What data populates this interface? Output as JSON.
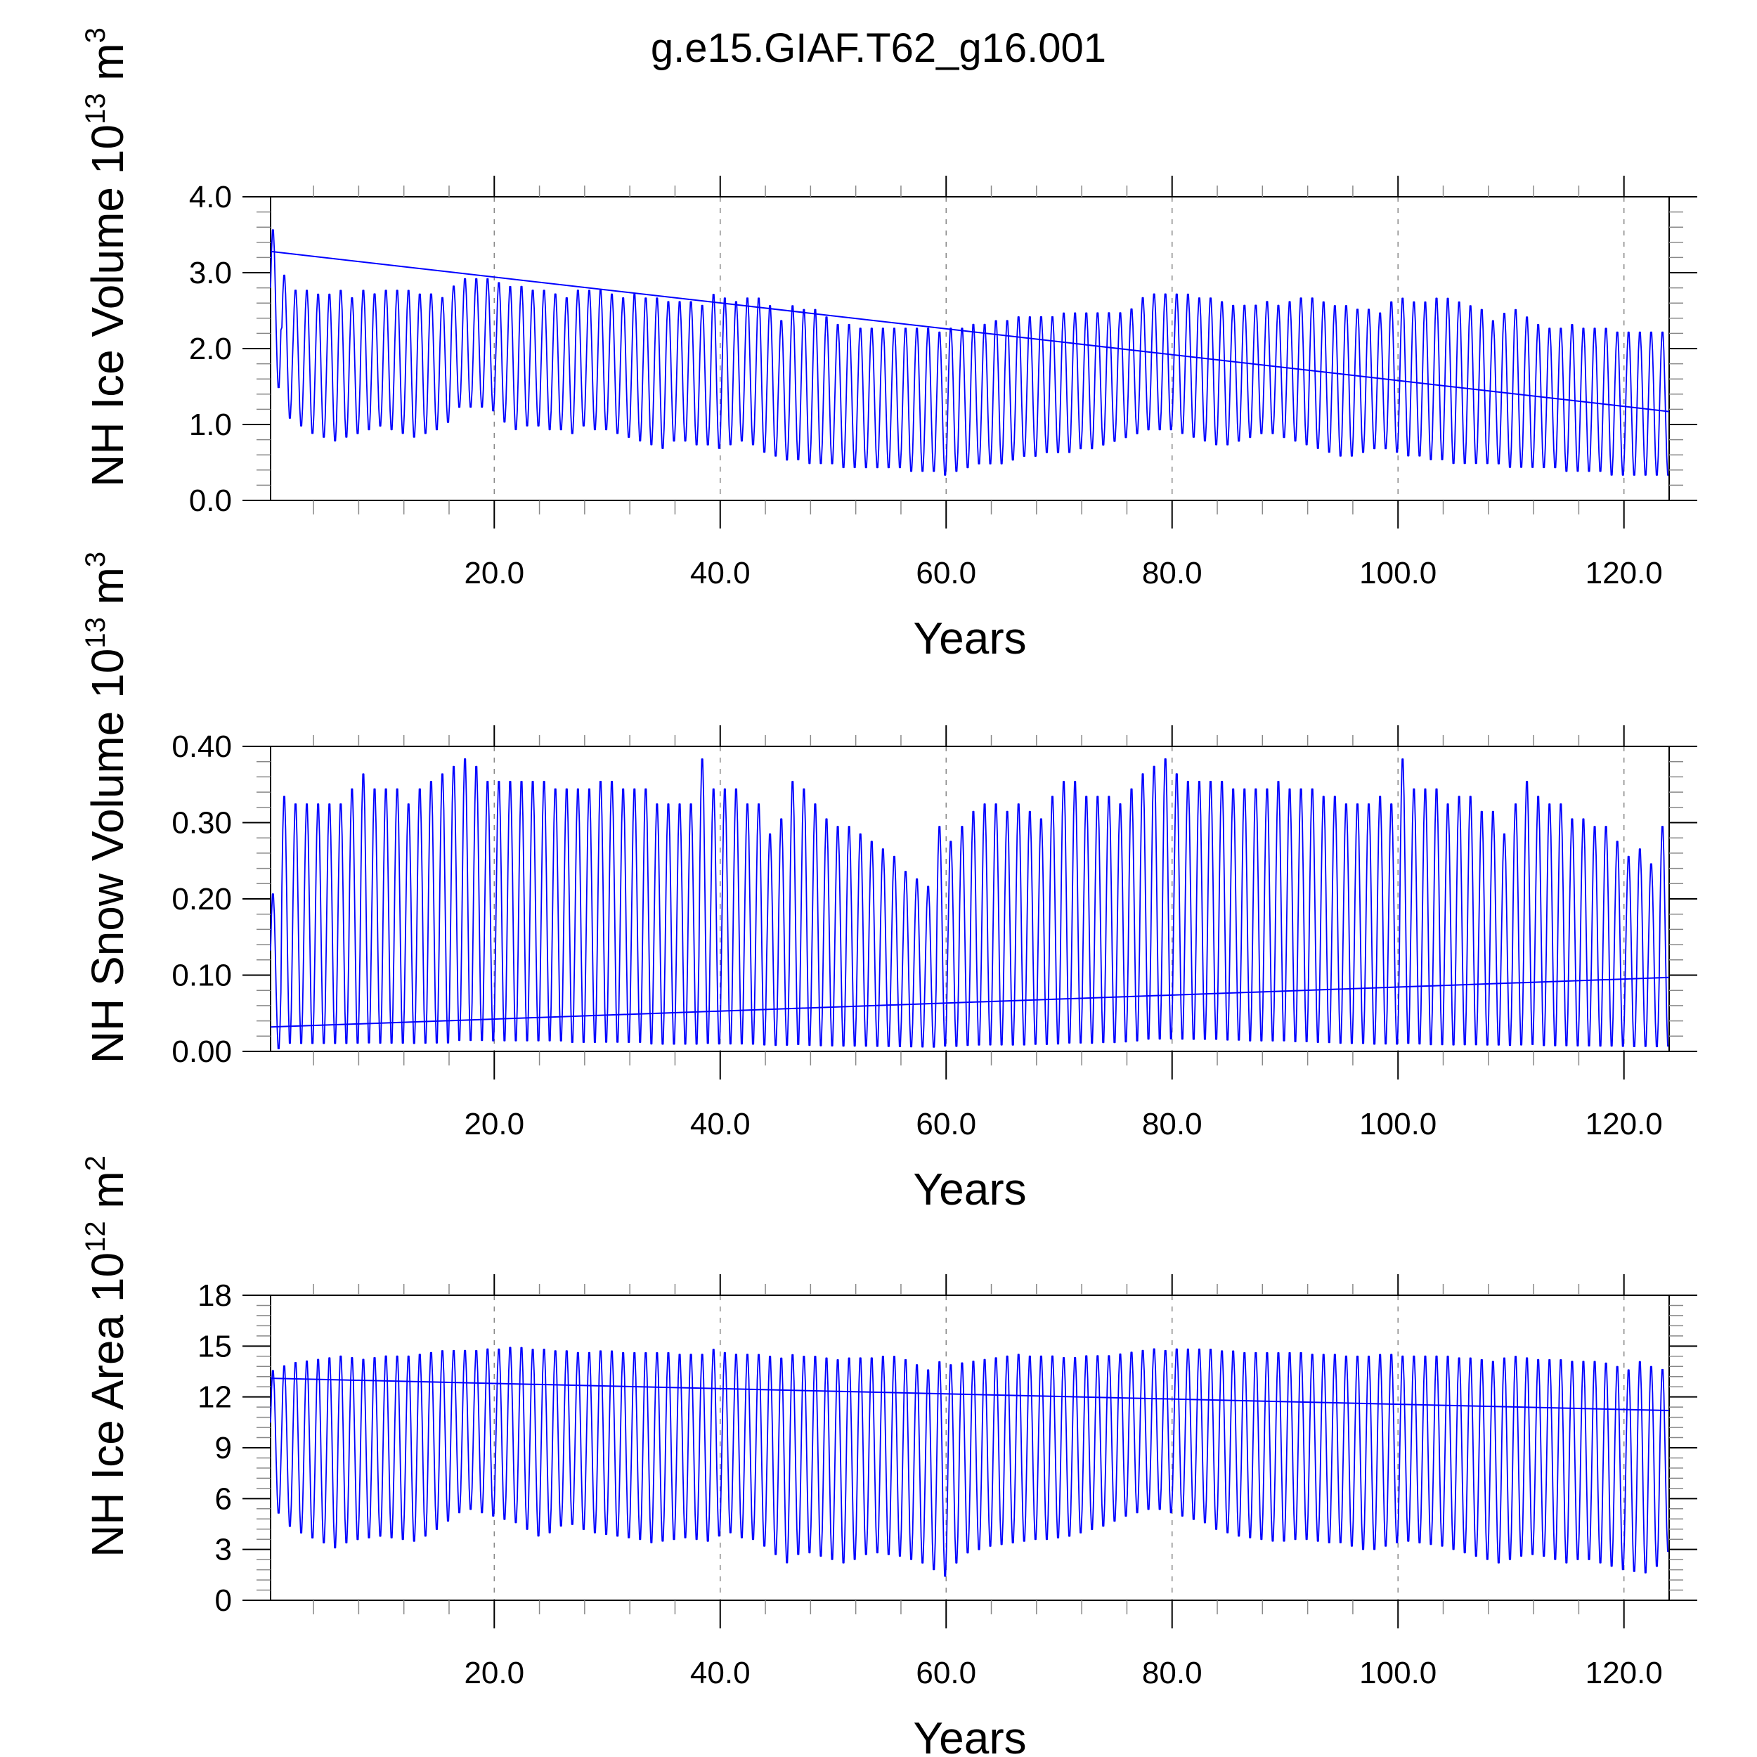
{
  "title": "g.e15.GIAF.T62_g16.001",
  "colors": {
    "series": "#0000ff",
    "axis": "#000000",
    "grid": "#888888"
  },
  "chart_data": [
    {
      "type": "line",
      "id": "ice-volume",
      "ylabel": {
        "prefix": "NH Ice Volume 10",
        "exp": "13",
        "unit": " m",
        "unit_exp": "3"
      },
      "xlabel": "Years",
      "xlim": [
        0.2,
        124.0
      ],
      "ylim": [
        0.0,
        4.0
      ],
      "yticks": [
        0.0,
        1.0,
        2.0,
        3.0,
        4.0
      ],
      "ytick_labels": [
        "0.0",
        "1.0",
        "2.0",
        "3.0",
        "4.0"
      ],
      "xticks": [
        20,
        40,
        60,
        80,
        100,
        120
      ],
      "xtick_labels": [
        "20.0",
        "40.0",
        "60.0",
        "80.0",
        "100.0",
        "120.0"
      ],
      "series": [
        {
          "name": "monthly",
          "start_year": 0.2,
          "points_per_year": 12,
          "annual_max": [
            3.6,
            3.0,
            2.8,
            2.8,
            2.75,
            2.75,
            2.8,
            2.7,
            2.8,
            2.75,
            2.8,
            2.8,
            2.8,
            2.75,
            2.75,
            2.7,
            2.85,
            2.95,
            2.95,
            2.95,
            2.9,
            2.85,
            2.85,
            2.8,
            2.8,
            2.75,
            2.7,
            2.8,
            2.8,
            2.8,
            2.75,
            2.7,
            2.75,
            2.7,
            2.7,
            2.65,
            2.65,
            2.65,
            2.6,
            2.75,
            2.7,
            2.65,
            2.7,
            2.7,
            2.6,
            2.4,
            2.6,
            2.55,
            2.55,
            2.45,
            2.35,
            2.35,
            2.3,
            2.3,
            2.3,
            2.3,
            2.3,
            2.3,
            2.3,
            2.25,
            2.3,
            2.3,
            2.35,
            2.35,
            2.4,
            2.4,
            2.45,
            2.45,
            2.45,
            2.45,
            2.5,
            2.5,
            2.5,
            2.5,
            2.5,
            2.5,
            2.55,
            2.7,
            2.75,
            2.75,
            2.75,
            2.75,
            2.7,
            2.7,
            2.65,
            2.6,
            2.6,
            2.6,
            2.65,
            2.6,
            2.65,
            2.7,
            2.7,
            2.65,
            2.6,
            2.6,
            2.55,
            2.55,
            2.5,
            2.65,
            2.7,
            2.65,
            2.65,
            2.7,
            2.7,
            2.65,
            2.6,
            2.55,
            2.4,
            2.5,
            2.55,
            2.45,
            2.35,
            2.3,
            2.3,
            2.35,
            2.3,
            2.3,
            2.3,
            2.25,
            2.25,
            2.25,
            2.25,
            2.25
          ],
          "annual_min": [
            1.45,
            1.05,
            0.95,
            0.85,
            0.8,
            0.75,
            0.8,
            0.85,
            0.9,
            0.95,
            0.9,
            0.85,
            0.8,
            0.85,
            0.9,
            1.0,
            1.2,
            1.2,
            1.2,
            1.15,
            1.0,
            0.9,
            0.95,
            0.95,
            0.9,
            0.9,
            0.85,
            0.95,
            0.9,
            0.9,
            0.85,
            0.8,
            0.75,
            0.7,
            0.65,
            0.75,
            0.75,
            0.7,
            0.7,
            0.65,
            0.7,
            0.75,
            0.7,
            0.6,
            0.55,
            0.5,
            0.5,
            0.45,
            0.45,
            0.45,
            0.4,
            0.4,
            0.4,
            0.4,
            0.4,
            0.4,
            0.35,
            0.35,
            0.35,
            0.3,
            0.35,
            0.4,
            0.45,
            0.45,
            0.45,
            0.5,
            0.55,
            0.55,
            0.6,
            0.6,
            0.6,
            0.65,
            0.65,
            0.7,
            0.75,
            0.8,
            0.85,
            0.9,
            0.9,
            0.9,
            0.85,
            0.8,
            0.75,
            0.7,
            0.7,
            0.75,
            0.8,
            0.85,
            0.85,
            0.8,
            0.75,
            0.7,
            0.65,
            0.6,
            0.55,
            0.55,
            0.6,
            0.65,
            0.65,
            0.6,
            0.55,
            0.55,
            0.5,
            0.5,
            0.45,
            0.45,
            0.45,
            0.45,
            0.45,
            0.4,
            0.4,
            0.4,
            0.4,
            0.4,
            0.35,
            0.35,
            0.35,
            0.35,
            0.3,
            0.3,
            0.3,
            0.3,
            0.3,
            0.3
          ]
        },
        {
          "name": "trend",
          "x": [
            0.2,
            124.0
          ],
          "y": [
            3.28,
            1.17
          ]
        }
      ]
    },
    {
      "type": "line",
      "id": "snow-volume",
      "ylabel": {
        "prefix": "NH Snow Volume 10",
        "exp": "13",
        "unit": " m",
        "unit_exp": "3"
      },
      "xlabel": "Years",
      "xlim": [
        0.2,
        124.0
      ],
      "ylim": [
        0.0,
        0.4
      ],
      "yticks": [
        0.0,
        0.1,
        0.2,
        0.3,
        0.4
      ],
      "ytick_labels": [
        "0.00",
        "0.10",
        "0.20",
        "0.30",
        "0.40"
      ],
      "xticks": [
        20,
        40,
        60,
        80,
        100,
        120
      ],
      "xtick_labels": [
        "20.0",
        "40.0",
        "60.0",
        "80.0",
        "100.0",
        "120.0"
      ],
      "series": [
        {
          "name": "monthly",
          "start_year": 0.2,
          "points_per_year": 12,
          "annual_max": [
            0.21,
            0.34,
            0.33,
            0.33,
            0.33,
            0.33,
            0.33,
            0.35,
            0.37,
            0.35,
            0.35,
            0.35,
            0.33,
            0.35,
            0.36,
            0.37,
            0.38,
            0.39,
            0.38,
            0.36,
            0.36,
            0.36,
            0.36,
            0.36,
            0.36,
            0.35,
            0.35,
            0.35,
            0.35,
            0.36,
            0.36,
            0.35,
            0.35,
            0.35,
            0.33,
            0.33,
            0.33,
            0.33,
            0.39,
            0.35,
            0.35,
            0.35,
            0.33,
            0.33,
            0.29,
            0.31,
            0.36,
            0.35,
            0.33,
            0.31,
            0.3,
            0.3,
            0.29,
            0.28,
            0.27,
            0.26,
            0.24,
            0.23,
            0.22,
            0.3,
            0.28,
            0.3,
            0.32,
            0.33,
            0.33,
            0.32,
            0.33,
            0.32,
            0.31,
            0.34,
            0.36,
            0.36,
            0.34,
            0.34,
            0.34,
            0.33,
            0.35,
            0.37,
            0.38,
            0.39,
            0.37,
            0.36,
            0.36,
            0.36,
            0.36,
            0.35,
            0.35,
            0.35,
            0.35,
            0.36,
            0.35,
            0.35,
            0.35,
            0.34,
            0.34,
            0.33,
            0.33,
            0.33,
            0.34,
            0.33,
            0.39,
            0.35,
            0.35,
            0.35,
            0.33,
            0.34,
            0.34,
            0.32,
            0.32,
            0.29,
            0.33,
            0.36,
            0.34,
            0.33,
            0.33,
            0.31,
            0.31,
            0.3,
            0.3,
            0.28,
            0.26,
            0.27,
            0.25,
            0.3
          ],
          "annual_min": [
            0.0,
            0.005,
            0.005,
            0.005,
            0.005,
            0.005,
            0.005,
            0.005,
            0.005,
            0.005,
            0.005,
            0.005,
            0.005,
            0.005,
            0.005,
            0.005,
            0.008,
            0.008,
            0.008,
            0.008,
            0.008,
            0.008,
            0.008,
            0.008,
            0.008,
            0.008,
            0.006,
            0.006,
            0.006,
            0.006,
            0.006,
            0.006,
            0.006,
            0.004,
            0.004,
            0.004,
            0.004,
            0.004,
            0.004,
            0.004,
            0.004,
            0.004,
            0.004,
            0.003,
            0.003,
            0.003,
            0.003,
            0.002,
            0.002,
            0.002,
            0.002,
            0.002,
            0.002,
            0.002,
            0.002,
            0.002,
            0.002,
            0.002,
            0.002,
            0.002,
            0.002,
            0.003,
            0.003,
            0.003,
            0.003,
            0.003,
            0.003,
            0.004,
            0.004,
            0.004,
            0.005,
            0.005,
            0.005,
            0.006,
            0.006,
            0.007,
            0.008,
            0.01,
            0.01,
            0.01,
            0.01,
            0.01,
            0.01,
            0.01,
            0.009,
            0.009,
            0.008,
            0.008,
            0.008,
            0.008,
            0.007,
            0.007,
            0.006,
            0.006,
            0.005,
            0.005,
            0.005,
            0.004,
            0.004,
            0.004,
            0.004,
            0.004,
            0.003,
            0.003,
            0.003,
            0.003,
            0.003,
            0.003,
            0.003,
            0.003,
            0.003,
            0.003,
            0.002,
            0.002,
            0.002,
            0.002,
            0.002,
            0.002,
            0.002,
            0.002,
            0.002,
            0.002,
            0.002,
            0.002
          ]
        },
        {
          "name": "trend",
          "x": [
            0.2,
            124.0
          ],
          "y": [
            0.032,
            0.097
          ]
        }
      ]
    },
    {
      "type": "line",
      "id": "ice-area",
      "ylabel": {
        "prefix": "NH Ice Area 10",
        "exp": "12",
        "unit": " m",
        "unit_exp": "2"
      },
      "xlabel": "Years",
      "xlim": [
        0.2,
        124.0
      ],
      "ylim": [
        0,
        18
      ],
      "yticks": [
        0,
        3,
        6,
        9,
        12,
        15,
        18
      ],
      "ytick_labels": [
        "0",
        "3",
        "6",
        "9",
        "12",
        "15",
        "18"
      ],
      "xticks": [
        20,
        40,
        60,
        80,
        100,
        120
      ],
      "xtick_labels": [
        "20.0",
        "40.0",
        "60.0",
        "80.0",
        "100.0",
        "120.0"
      ],
      "series": [
        {
          "name": "monthly",
          "start_year": 0.2,
          "points_per_year": 12,
          "annual_max": [
            13.7,
            14.0,
            14.2,
            14.3,
            14.4,
            14.5,
            14.6,
            14.5,
            14.4,
            14.5,
            14.6,
            14.6,
            14.6,
            14.7,
            14.8,
            14.9,
            14.9,
            14.9,
            14.9,
            15.0,
            15.0,
            15.1,
            15.1,
            15.0,
            15.0,
            14.9,
            14.9,
            14.8,
            14.8,
            14.9,
            14.9,
            14.8,
            14.8,
            14.8,
            14.8,
            14.8,
            14.7,
            14.7,
            14.7,
            15.0,
            14.8,
            14.7,
            14.7,
            14.7,
            14.6,
            14.5,
            14.7,
            14.6,
            14.6,
            14.5,
            14.4,
            14.5,
            14.5,
            14.5,
            14.6,
            14.6,
            14.4,
            14.1,
            13.8,
            14.3,
            14.1,
            14.2,
            14.3,
            14.4,
            14.5,
            14.6,
            14.7,
            14.6,
            14.6,
            14.6,
            14.5,
            14.5,
            14.6,
            14.6,
            14.6,
            14.7,
            14.8,
            14.9,
            15.0,
            14.9,
            15.0,
            15.0,
            15.0,
            15.0,
            14.9,
            14.9,
            14.8,
            14.8,
            14.8,
            14.8,
            14.8,
            14.8,
            14.7,
            14.7,
            14.7,
            14.6,
            14.6,
            14.6,
            14.7,
            14.7,
            14.6,
            14.6,
            14.6,
            14.6,
            14.6,
            14.5,
            14.5,
            14.4,
            14.3,
            14.5,
            14.6,
            14.5,
            14.4,
            14.4,
            14.4,
            14.3,
            14.3,
            14.3,
            14.2,
            14.0,
            13.8,
            14.3,
            14.0,
            13.8
          ],
          "annual_min": [
            5.0,
            4.2,
            3.8,
            3.5,
            3.2,
            2.9,
            3.2,
            3.4,
            3.5,
            3.6,
            3.5,
            3.4,
            3.3,
            3.6,
            4.0,
            4.5,
            5.0,
            5.2,
            5.0,
            4.8,
            4.6,
            4.4,
            4.0,
            3.6,
            3.8,
            4.2,
            4.3,
            4.0,
            3.8,
            3.7,
            3.6,
            3.5,
            3.4,
            3.2,
            3.3,
            3.4,
            3.5,
            3.4,
            3.3,
            3.6,
            3.8,
            3.5,
            3.4,
            3.0,
            2.5,
            2.0,
            2.5,
            2.6,
            2.4,
            2.2,
            2.0,
            2.2,
            2.5,
            2.6,
            2.5,
            2.4,
            2.2,
            2.0,
            1.6,
            1.2,
            2.0,
            2.6,
            2.8,
            3.0,
            3.1,
            3.2,
            3.3,
            3.4,
            3.4,
            3.5,
            3.6,
            3.8,
            4.0,
            4.2,
            4.5,
            4.8,
            5.0,
            5.2,
            5.2,
            5.0,
            4.8,
            4.6,
            4.4,
            4.0,
            3.8,
            3.6,
            3.5,
            3.4,
            3.3,
            3.3,
            3.4,
            3.4,
            3.3,
            3.2,
            3.2,
            3.0,
            2.8,
            2.8,
            3.0,
            3.2,
            3.3,
            3.2,
            3.1,
            3.0,
            2.8,
            2.6,
            2.4,
            2.2,
            2.0,
            2.2,
            2.4,
            2.5,
            2.4,
            2.2,
            2.0,
            2.2,
            2.2,
            2.0,
            1.8,
            1.6,
            1.5,
            1.4,
            1.8,
            2.7
          ]
        },
        {
          "name": "trend",
          "x": [
            0.2,
            124.0
          ],
          "y": [
            13.1,
            11.2
          ]
        }
      ]
    }
  ]
}
